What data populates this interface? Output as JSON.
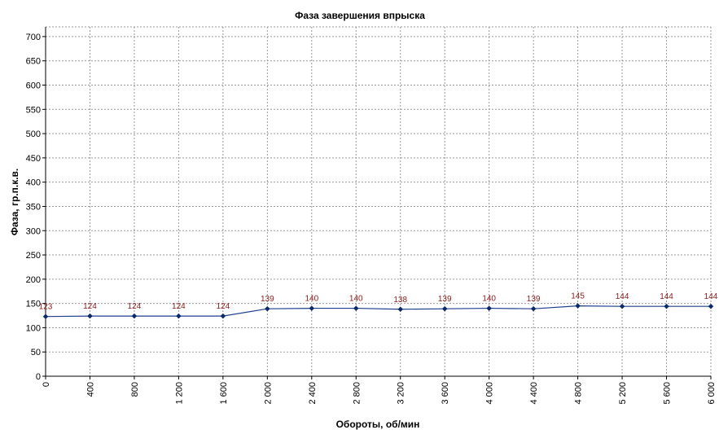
{
  "chart_data": {
    "type": "line",
    "title": "Фаза завершения впрыска",
    "xlabel": "Обороты, об/мин",
    "ylabel": "Фаза, гр.п.к.в.",
    "xlim": [
      0,
      6000
    ],
    "ylim": [
      0,
      720
    ],
    "x_ticks": [
      0,
      400,
      800,
      1200,
      1600,
      2000,
      2400,
      2800,
      3200,
      3600,
      4000,
      4400,
      4800,
      5200,
      5600,
      6000
    ],
    "x_tick_labels": [
      "0",
      "400",
      "800",
      "1 200",
      "1 600",
      "2 000",
      "2 400",
      "2 800",
      "3 200",
      "3 600",
      "4 000",
      "4 400",
      "4 800",
      "5 200",
      "5 600",
      "6 000"
    ],
    "y_ticks": [
      0,
      50,
      100,
      150,
      200,
      250,
      300,
      350,
      400,
      450,
      500,
      550,
      600,
      650,
      700
    ],
    "grid": true,
    "colors": {
      "line": "#1f3f8f",
      "marker": "#0a2a6a",
      "data_label": "#8b1a1a"
    },
    "series": [
      {
        "x": [
          0,
          400,
          800,
          1200,
          1600,
          2000,
          2400,
          2800,
          3200,
          3600,
          4000,
          4400,
          4800,
          5200,
          5600,
          6000
        ],
        "values": [
          123,
          124,
          124,
          124,
          124,
          139,
          140,
          140,
          138,
          139,
          140,
          139,
          145,
          144,
          144,
          144
        ]
      }
    ]
  }
}
